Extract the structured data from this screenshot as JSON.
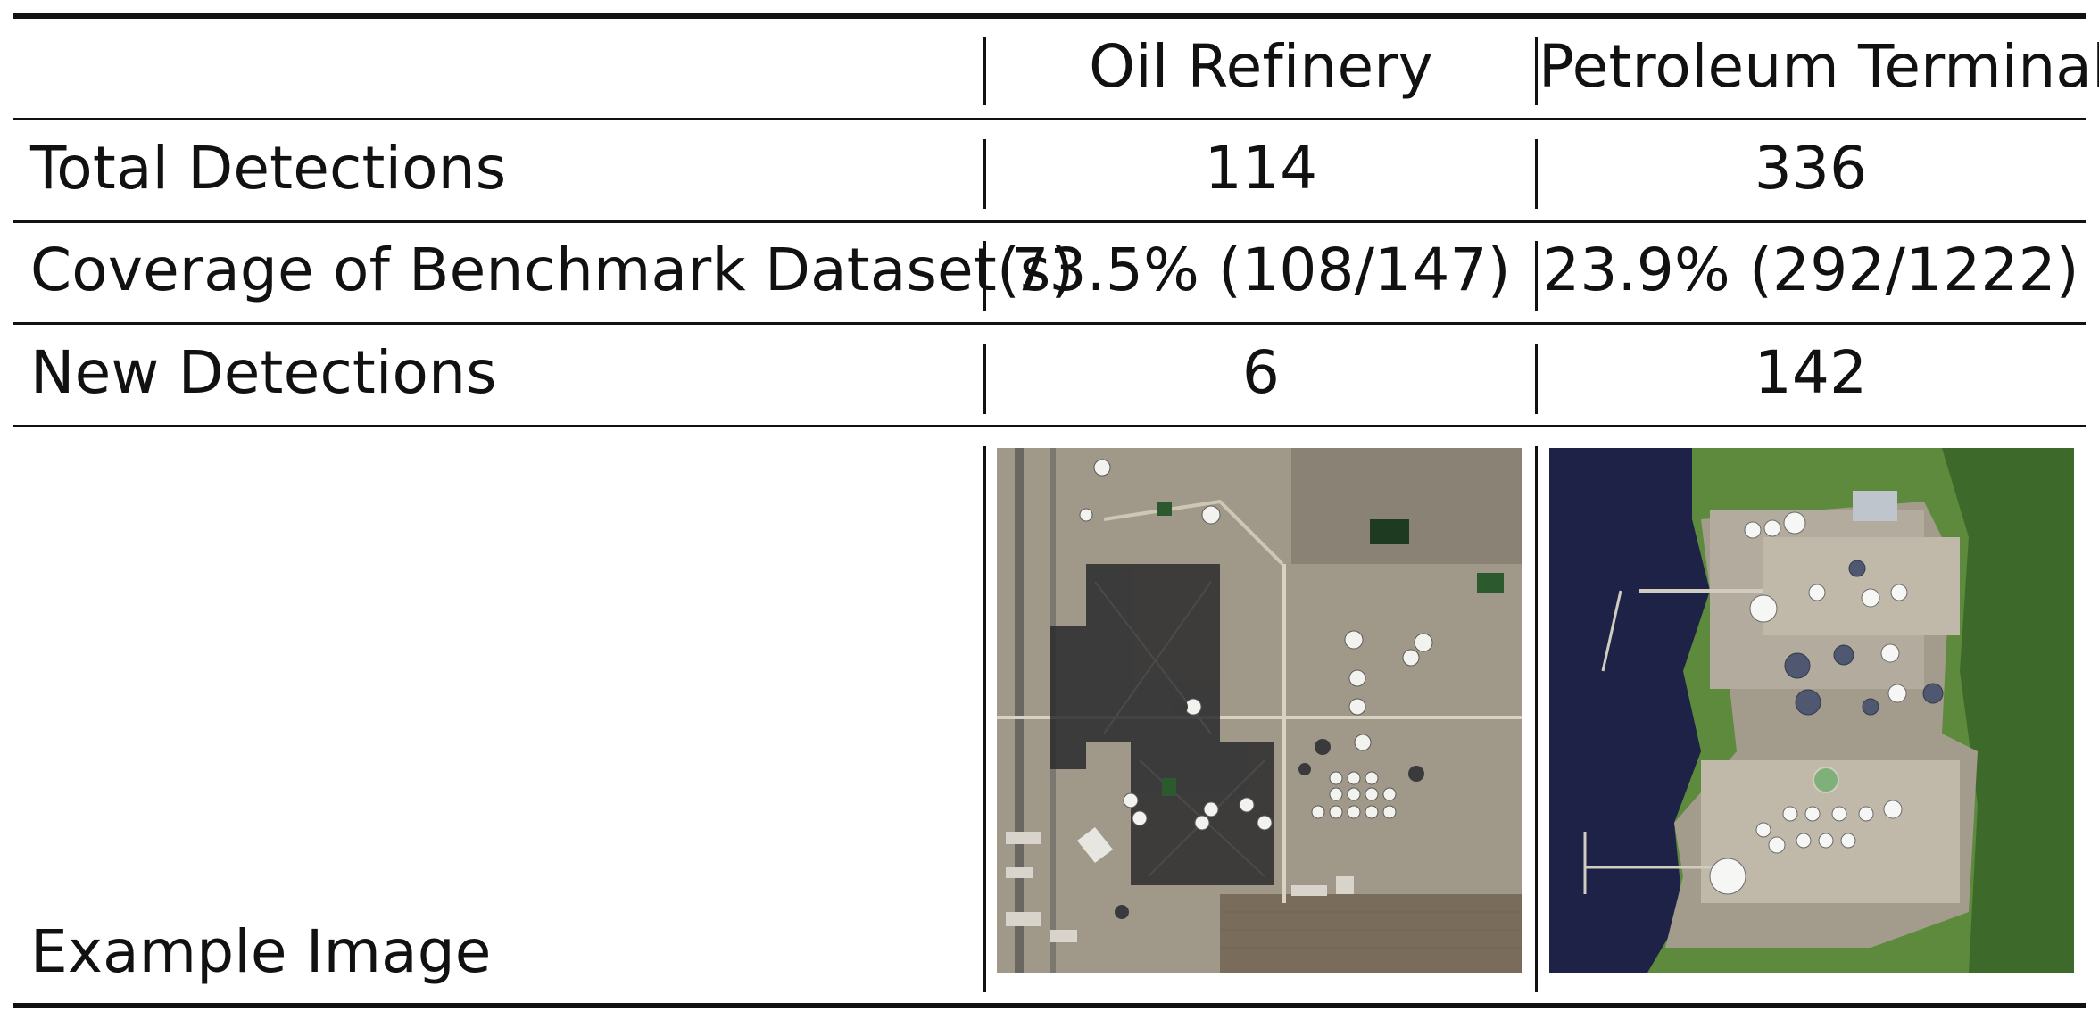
{
  "table": {
    "columns": [
      "",
      "Oil Refinery",
      "Petroleum Terminal"
    ],
    "rows": [
      {
        "label": "Total Detections",
        "values": [
          "114",
          "336"
        ]
      },
      {
        "label": "Coverage of Benchmark Dataset(s)",
        "values": [
          "73.5% (108/147)",
          "23.9% (292/1222)"
        ]
      },
      {
        "label": "New Detections",
        "values": [
          "6",
          "142"
        ]
      }
    ],
    "image_row_label": "Example Image",
    "images": [
      {
        "description_icon": "oil-refinery-aerial-image"
      },
      {
        "description_icon": "petroleum-terminal-aerial-image"
      }
    ]
  },
  "colors": {
    "rule": "#111111",
    "water": "#1e2246",
    "vegetation": "#5d8a3c",
    "ground": "#a39c8d"
  }
}
